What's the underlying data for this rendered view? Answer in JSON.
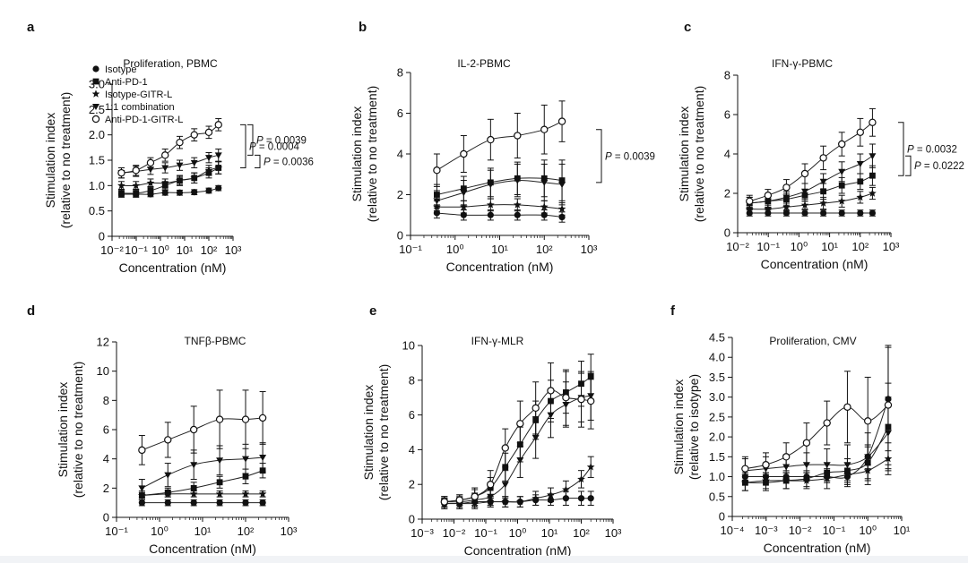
{
  "chart_data": [
    {
      "id": "a",
      "type": "scatter",
      "letter": "a",
      "title": "Proliferation, PBMC",
      "xlabel": "Concentration (nM)",
      "ylabel": [
        "Stimulation index",
        "(relative to no treatment)"
      ],
      "xscale": "log",
      "xlim": [
        0.01,
        1000
      ],
      "ylim": [
        0,
        3.0
      ],
      "yticks": [
        0,
        0.5,
        1.0,
        1.5,
        2.0,
        2.5,
        3.0
      ],
      "ytick_labels": [
        "0",
        "0.5",
        "1.0",
        "1.5",
        "2.0",
        "2.5",
        "3.0"
      ],
      "x": [
        0.0244,
        0.0977,
        0.39,
        1.56,
        6.25,
        25,
        100,
        250
      ],
      "series": [
        {
          "name": "Isotype",
          "marker": "circle",
          "values": [
            0.83,
            0.83,
            0.83,
            0.86,
            0.86,
            0.87,
            0.9,
            0.95
          ],
          "err": [
            0.05,
            0.05,
            0.05,
            0.05,
            0.05,
            0.05,
            0.05,
            0.05
          ]
        },
        {
          "name": "Anti-PD-1",
          "marker": "square",
          "values": [
            0.85,
            0.85,
            0.9,
            1.0,
            1.1,
            1.15,
            1.25,
            1.35
          ],
          "err": [
            0.08,
            0.08,
            0.08,
            0.08,
            0.08,
            0.1,
            0.1,
            0.12
          ]
        },
        {
          "name": "Isotype-GITR-L",
          "marker": "star",
          "values": [
            1.0,
            1.0,
            1.05,
            1.05,
            1.1,
            1.15,
            1.3,
            1.35
          ],
          "err": [
            0.08,
            0.08,
            0.08,
            0.08,
            0.1,
            0.1,
            0.1,
            0.12
          ]
        },
        {
          "name": "1:1 combination",
          "marker": "triangle-down",
          "values": [
            1.25,
            1.28,
            1.32,
            1.35,
            1.4,
            1.45,
            1.55,
            1.6
          ],
          "err": [
            0.1,
            0.1,
            0.1,
            0.1,
            0.1,
            0.1,
            0.1,
            0.12
          ]
        },
        {
          "name": "Anti-PD-1-GITR-L",
          "marker": "circle-open",
          "values": [
            1.25,
            1.3,
            1.45,
            1.6,
            1.85,
            2.0,
            2.05,
            2.2
          ],
          "err": [
            0.1,
            0.1,
            0.1,
            0.12,
            0.12,
            0.12,
            0.12,
            0.12
          ]
        }
      ],
      "legend": "top-left",
      "annotations": [
        {
          "text": "P = 0.0004",
          "between": [
            2.2,
            1.35
          ]
        },
        {
          "text": "P = 0.0039",
          "between": [
            2.2,
            1.6
          ]
        },
        {
          "text": "P = 0.0036",
          "between": [
            1.6,
            1.35
          ]
        }
      ]
    },
    {
      "id": "b",
      "type": "scatter",
      "letter": "b",
      "title": "IL-2-PBMC",
      "xlabel": "Concentration (nM)",
      "ylabel": [
        "Stimulation index",
        "(relative to no treatment)"
      ],
      "xscale": "log",
      "xlim": [
        0.1,
        1000
      ],
      "ylim": [
        0,
        8
      ],
      "yticks": [
        0,
        2,
        4,
        6,
        8
      ],
      "ytick_labels": [
        "0",
        "2",
        "4",
        "6",
        "8"
      ],
      "x": [
        0.39,
        1.56,
        6.25,
        25,
        100,
        250
      ],
      "series": [
        {
          "name": "Isotype",
          "marker": "circle",
          "values": [
            1.1,
            1.0,
            1.0,
            1.0,
            1.0,
            0.9
          ],
          "err": [
            0.25,
            0.25,
            0.25,
            0.25,
            0.25,
            0.25
          ]
        },
        {
          "name": "Anti-PD-1",
          "marker": "square",
          "values": [
            2.0,
            2.3,
            2.6,
            2.8,
            2.8,
            2.7
          ],
          "err": [
            0.5,
            0.6,
            0.7,
            0.8,
            0.9,
            1.0
          ]
        },
        {
          "name": "Isotype-GITR-L",
          "marker": "star",
          "values": [
            1.4,
            1.4,
            1.5,
            1.5,
            1.4,
            1.3
          ],
          "err": [
            0.3,
            0.3,
            0.3,
            0.3,
            0.3,
            0.3
          ]
        },
        {
          "name": "1:1 combination",
          "marker": "triangle-down",
          "values": [
            1.7,
            2.1,
            2.5,
            2.7,
            2.6,
            2.5
          ],
          "err": [
            0.5,
            0.6,
            0.7,
            0.8,
            0.9,
            1.0
          ]
        },
        {
          "name": "Anti-PD-1-GITR-L",
          "marker": "circle-open",
          "values": [
            3.2,
            4.0,
            4.7,
            4.9,
            5.2,
            5.6
          ],
          "err": [
            0.8,
            0.9,
            1.0,
            1.1,
            1.2,
            1.0
          ]
        }
      ],
      "annotations": [
        {
          "text": "P = 0.0039",
          "between": [
            5.2,
            2.6
          ]
        }
      ]
    },
    {
      "id": "c",
      "type": "scatter",
      "letter": "c",
      "title": "IFN-γ-PBMC",
      "xlabel": "Concentration (nM)",
      "ylabel": [
        "Stimulation index",
        "(relative to no treatment)"
      ],
      "xscale": "log",
      "xlim": [
        0.01,
        1000
      ],
      "ylim": [
        0,
        8
      ],
      "yticks": [
        0,
        2,
        4,
        6,
        8
      ],
      "ytick_labels": [
        "0",
        "2",
        "4",
        "6",
        "8"
      ],
      "x": [
        0.0244,
        0.0977,
        0.39,
        1.56,
        6.25,
        25,
        100,
        250
      ],
      "series": [
        {
          "name": "Isotype",
          "marker": "circle",
          "values": [
            1.0,
            1.0,
            1.0,
            1.0,
            1.0,
            1.0,
            1.0,
            1.0
          ],
          "err": [
            0.15,
            0.15,
            0.15,
            0.15,
            0.15,
            0.15,
            0.15,
            0.15
          ]
        },
        {
          "name": "Anti-PD-1",
          "marker": "square",
          "values": [
            1.5,
            1.6,
            1.7,
            1.9,
            2.1,
            2.4,
            2.6,
            2.9
          ],
          "err": [
            0.3,
            0.3,
            0.3,
            0.3,
            0.4,
            0.4,
            0.4,
            0.5
          ]
        },
        {
          "name": "Isotype-GITR-L",
          "marker": "star",
          "values": [
            1.2,
            1.2,
            1.3,
            1.4,
            1.5,
            1.6,
            1.8,
            2.0
          ],
          "err": [
            0.2,
            0.2,
            0.2,
            0.2,
            0.3,
            0.3,
            0.3,
            0.3
          ]
        },
        {
          "name": "1:1 combination",
          "marker": "triangle-down",
          "values": [
            1.5,
            1.6,
            1.8,
            2.1,
            2.6,
            3.1,
            3.5,
            3.9
          ],
          "err": [
            0.3,
            0.3,
            0.3,
            0.4,
            0.4,
            0.5,
            0.5,
            0.6
          ]
        },
        {
          "name": "Anti-PD-1-GITR-L",
          "marker": "circle-open",
          "values": [
            1.6,
            1.9,
            2.3,
            3.0,
            3.8,
            4.5,
            5.1,
            5.6
          ],
          "err": [
            0.3,
            0.3,
            0.4,
            0.5,
            0.6,
            0.6,
            0.7,
            0.7
          ]
        }
      ],
      "annotations": [
        {
          "text": "P = 0.0032",
          "between": [
            5.6,
            2.9
          ]
        },
        {
          "text": "P = 0.0222",
          "between": [
            3.9,
            2.9
          ]
        }
      ]
    },
    {
      "id": "d",
      "type": "scatter",
      "letter": "d",
      "title": "TNFβ-PBMC",
      "xlabel": "Concentration (nM)",
      "ylabel": [
        "Stimulation index",
        "(relative to no treatment)"
      ],
      "xscale": "log",
      "xlim": [
        0.1,
        1000
      ],
      "ylim": [
        0,
        12
      ],
      "yticks": [
        0,
        2,
        4,
        6,
        8,
        10,
        12
      ],
      "ytick_labels": [
        "0",
        "2",
        "4",
        "6",
        "8",
        "10",
        "12"
      ],
      "x": [
        0.39,
        1.56,
        6.25,
        25,
        100,
        250
      ],
      "series": [
        {
          "name": "Isotype",
          "marker": "circle",
          "values": [
            1.0,
            1.0,
            1.0,
            1.0,
            1.0,
            1.0
          ],
          "err": [
            0.2,
            0.2,
            0.2,
            0.2,
            0.2,
            0.2
          ]
        },
        {
          "name": "Anti-PD-1",
          "marker": "square",
          "values": [
            1.5,
            1.7,
            2.0,
            2.4,
            2.8,
            3.2
          ],
          "err": [
            0.3,
            0.3,
            0.4,
            0.4,
            0.5,
            0.5
          ]
        },
        {
          "name": "Isotype-GITR-L",
          "marker": "star",
          "values": [
            1.5,
            1.6,
            1.6,
            1.6,
            1.6,
            1.6
          ],
          "err": [
            0.2,
            0.2,
            0.2,
            0.2,
            0.2,
            0.2
          ]
        },
        {
          "name": "1:1 combination",
          "marker": "triangle-down",
          "values": [
            2.0,
            2.9,
            3.6,
            3.9,
            4.0,
            4.1
          ],
          "err": [
            0.6,
            0.8,
            1.0,
            1.0,
            1.0,
            1.0
          ]
        },
        {
          "name": "Anti-PD-1-GITR-L",
          "marker": "circle-open",
          "values": [
            4.6,
            5.3,
            6.0,
            6.7,
            6.7,
            6.8
          ],
          "err": [
            1.0,
            1.2,
            1.6,
            2.0,
            2.0,
            1.8
          ]
        }
      ]
    },
    {
      "id": "e",
      "type": "scatter",
      "letter": "e",
      "title": "IFN-γ-MLR",
      "xlabel": "Concentration (nM)",
      "ylabel": [
        "Stimulation index",
        "(relative to no treatment)"
      ],
      "xscale": "log",
      "xlim": [
        0.001,
        1000
      ],
      "ylim": [
        0,
        10
      ],
      "yticks": [
        0,
        2,
        4,
        6,
        8,
        10
      ],
      "ytick_labels": [
        "0",
        "2",
        "4",
        "6",
        "8",
        "10"
      ],
      "x": [
        0.005,
        0.015,
        0.045,
        0.14,
        0.41,
        1.2,
        3.7,
        11,
        33,
        100,
        200
      ],
      "series": [
        {
          "name": "Isotype",
          "marker": "circle",
          "values": [
            0.9,
            0.9,
            1.0,
            1.0,
            1.0,
            1.0,
            1.1,
            1.1,
            1.2,
            1.2,
            1.2
          ],
          "err": [
            0.3,
            0.3,
            0.3,
            0.3,
            0.3,
            0.3,
            0.3,
            0.3,
            0.4,
            0.4,
            0.4
          ]
        },
        {
          "name": "Anti-PD-1",
          "marker": "square",
          "values": [
            1.0,
            1.1,
            1.3,
            1.8,
            3.0,
            4.3,
            5.7,
            6.8,
            7.3,
            7.8,
            8.2
          ],
          "err": [
            0.3,
            0.3,
            0.4,
            0.6,
            0.8,
            1.0,
            1.1,
            1.2,
            1.2,
            1.3,
            1.3
          ]
        },
        {
          "name": "Isotype-GITR-L",
          "marker": "star",
          "values": [
            0.9,
            0.9,
            0.9,
            1.0,
            1.0,
            1.0,
            1.2,
            1.4,
            1.7,
            2.3,
            3.0
          ],
          "err": [
            0.3,
            0.3,
            0.3,
            0.3,
            0.3,
            0.3,
            0.4,
            0.4,
            0.5,
            0.5,
            0.6
          ]
        },
        {
          "name": "1:1 combination",
          "marker": "triangle-down",
          "values": [
            1.0,
            1.0,
            1.1,
            1.3,
            2.0,
            3.4,
            4.7,
            6.0,
            6.6,
            7.0,
            7.1
          ],
          "err": [
            0.3,
            0.3,
            0.4,
            0.5,
            0.8,
            1.0,
            1.2,
            1.3,
            1.3,
            1.4,
            1.4
          ]
        },
        {
          "name": "Anti-PD-1-GITR-L",
          "marker": "circle-open",
          "values": [
            1.0,
            1.1,
            1.3,
            2.0,
            4.1,
            5.5,
            6.4,
            7.4,
            7.0,
            6.9,
            6.8
          ],
          "err": [
            0.3,
            0.3,
            0.5,
            0.8,
            1.1,
            1.3,
            1.5,
            1.6,
            1.6,
            1.6,
            1.6
          ]
        }
      ]
    },
    {
      "id": "f",
      "type": "scatter",
      "letter": "f",
      "title": "Proliferation, CMV",
      "xlabel": "Concentration (nM)",
      "ylabel": [
        "Stimulation index",
        "(relative to isotype)"
      ],
      "xscale": "log",
      "xlim": [
        0.0001,
        10
      ],
      "ylim": [
        0,
        4.5
      ],
      "yticks": [
        0,
        0.5,
        1.0,
        1.5,
        2.0,
        2.5,
        3.0,
        3.5,
        4.0,
        4.5
      ],
      "ytick_labels": [
        "0",
        "0.5",
        "1.0",
        "1.5",
        "2.0",
        "2.5",
        "3.0",
        "3.5",
        "4.0",
        "4.5"
      ],
      "x": [
        0.00024,
        0.00098,
        0.0039,
        0.0156,
        0.0625,
        0.25,
        1.0,
        4.0
      ],
      "series": [
        {
          "name": "Isotype",
          "marker": "circle",
          "values": [
            1.0,
            1.0,
            1.0,
            1.0,
            1.0,
            1.0,
            1.5,
            2.95
          ],
          "err": [
            0.1,
            0.1,
            0.1,
            0.1,
            0.1,
            0.1,
            0.3,
            1.3
          ]
        },
        {
          "name": "Anti-PD-1",
          "marker": "square",
          "values": [
            0.85,
            0.85,
            0.9,
            0.95,
            1.1,
            1.15,
            1.35,
            2.25
          ],
          "err": [
            0.2,
            0.2,
            0.2,
            0.2,
            0.25,
            0.3,
            0.4,
            1.1
          ]
        },
        {
          "name": "Isotype-GITR-L",
          "marker": "star",
          "values": [
            0.85,
            0.9,
            0.9,
            0.9,
            0.95,
            1.05,
            1.15,
            1.45
          ],
          "err": [
            0.2,
            0.2,
            0.2,
            0.2,
            0.25,
            0.3,
            0.35,
            0.4
          ]
        },
        {
          "name": "1:1 combination",
          "marker": "triangle-down",
          "values": [
            1.15,
            1.2,
            1.25,
            1.3,
            1.3,
            1.3,
            1.5,
            2.1
          ],
          "err": [
            0.3,
            0.3,
            0.3,
            0.3,
            0.4,
            0.5,
            0.6,
            0.9
          ]
        },
        {
          "name": "Anti-PD-1-GITR-L",
          "marker": "circle-open",
          "values": [
            1.2,
            1.3,
            1.5,
            1.85,
            2.35,
            2.75,
            2.4,
            2.8
          ],
          "err": [
            0.3,
            0.3,
            0.35,
            0.5,
            0.55,
            0.9,
            1.1,
            1.5
          ]
        }
      ]
    }
  ]
}
